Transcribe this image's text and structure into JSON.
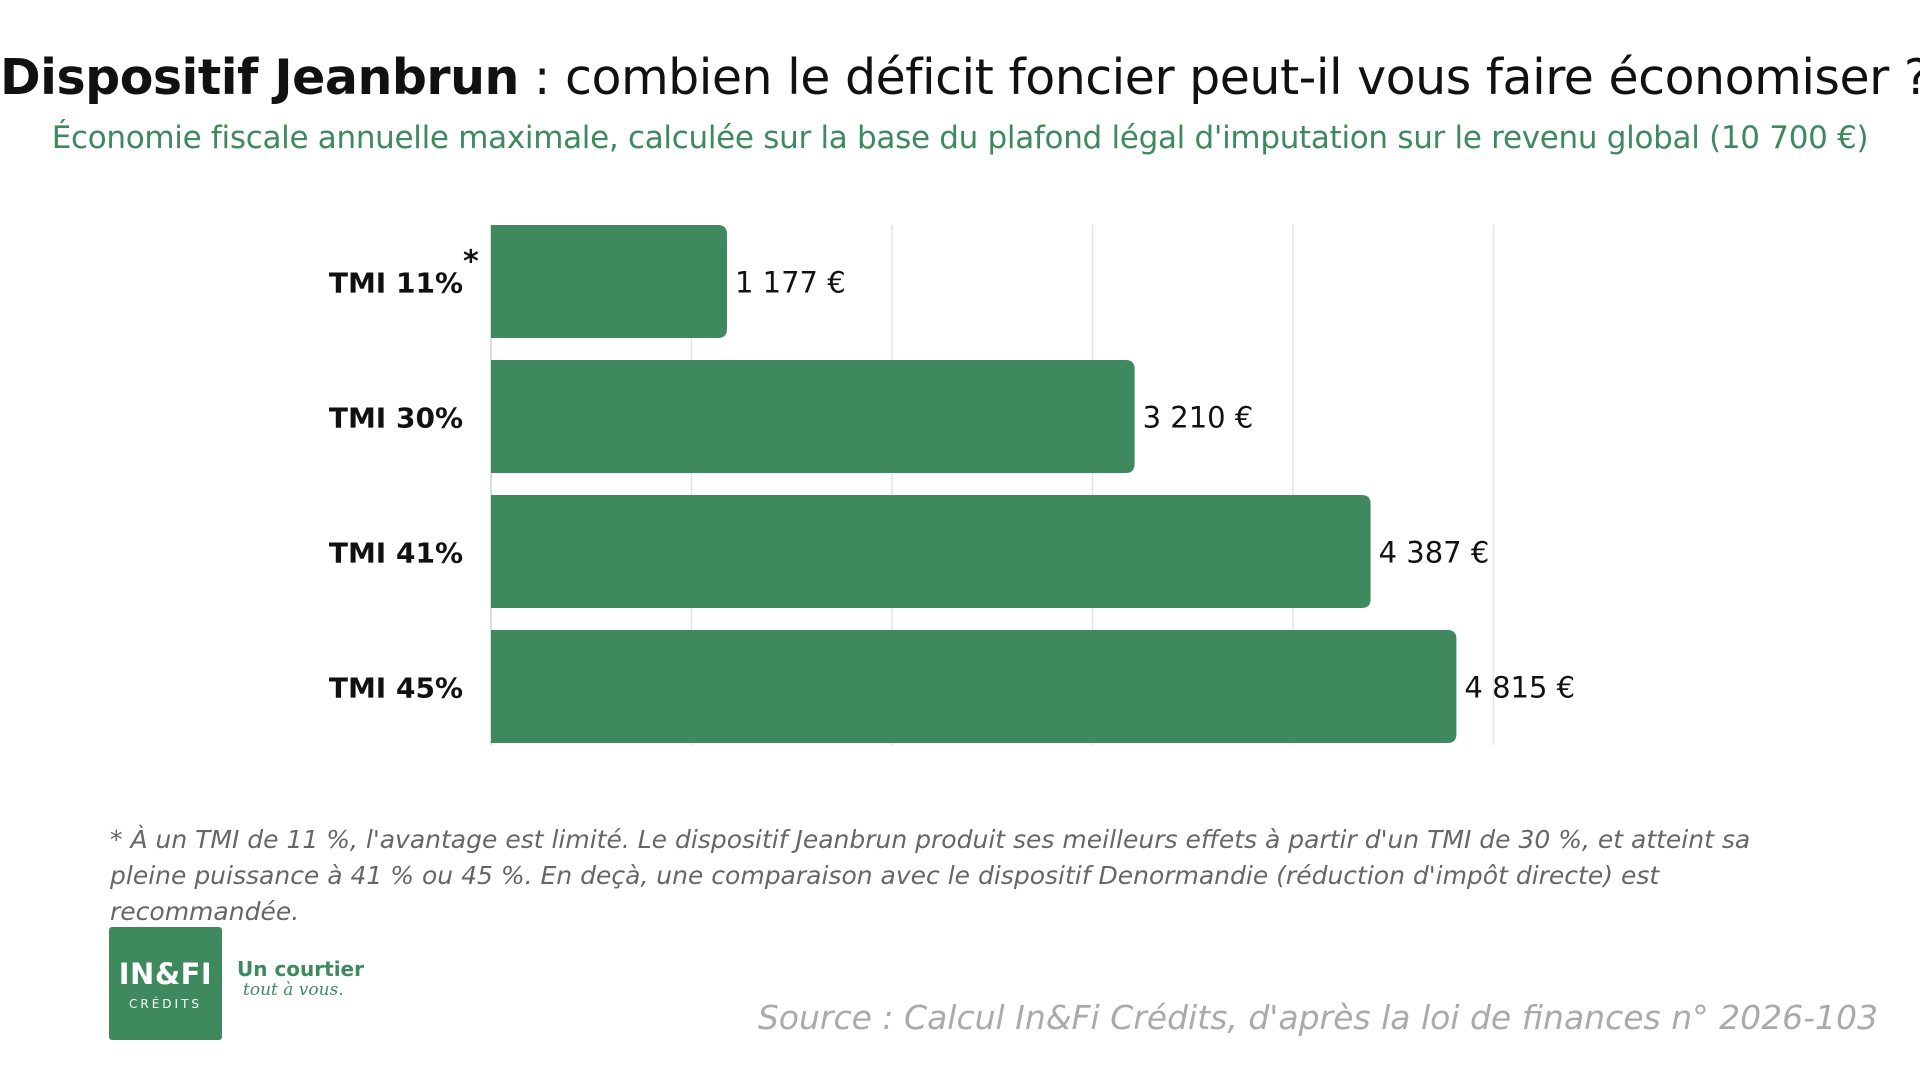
{
  "header": {
    "title_strong": "Dispositif Jeanbrun",
    "title_rest": " : combien le déficit foncier peut-il vous faire économiser ?",
    "subtitle": "Économie fiscale annuelle maximale, calculée sur la base du plafond légal d'imputation sur le revenu global (10 700 €)"
  },
  "chart_data": {
    "type": "bar",
    "orientation": "horizontal",
    "categories": [
      "TMI 11%",
      "TMI 30%",
      "TMI 41%",
      "TMI 45%"
    ],
    "category_markers": [
      "*",
      "",
      "",
      ""
    ],
    "values": [
      1177,
      3210,
      4387,
      4815
    ],
    "value_labels": [
      "1 177 €",
      "3 210 €",
      "4 387 €",
      "4 815 €"
    ],
    "xlim": [
      0,
      6000
    ],
    "grid": true,
    "bar_color": "#3e8a5e"
  },
  "footnote": "* À un TMI de 11 %, l'avantage est limité. Le dispositif Jeanbrun produit ses meilleurs effets à partir d'un TMI de 30 %, et atteint sa pleine puissance à 41 % ou 45 %. En deçà, une comparaison avec le dispositif Denormandie (réduction d'impôt directe) est recommandée.",
  "logo": {
    "main": "IN&FI",
    "sub": "CRÉDITS",
    "tagline_line1": "Un courtier",
    "tagline_line2": "tout à vous."
  },
  "source": "Source : Calcul In&Fi Crédits, d'après la loi de finances n° 2026-103",
  "colors": {
    "brand_green": "#3e8a5e",
    "gridline": "#e3e3e3",
    "source_gray": "#aaaaaa"
  }
}
